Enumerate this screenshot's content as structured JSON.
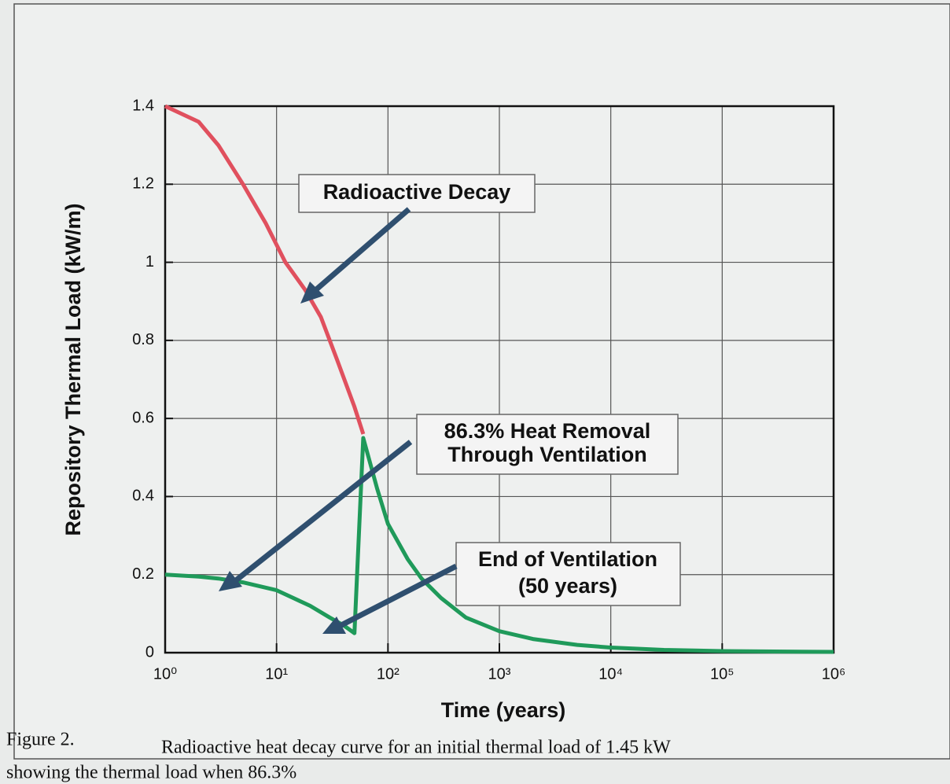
{
  "chart_data": {
    "type": "line",
    "xlabel": "Time (years)",
    "ylabel": "Repository Thermal Load (kW/m)",
    "xscale": "log",
    "grid": true,
    "xlim": [
      1,
      1000000
    ],
    "ylim": [
      0,
      1.4
    ],
    "xticks": [
      {
        "value": 1,
        "label": "10⁰"
      },
      {
        "value": 10,
        "label": "10¹"
      },
      {
        "value": 100,
        "label": "10²"
      },
      {
        "value": 1000,
        "label": "10³"
      },
      {
        "value": 10000,
        "label": "10⁴"
      },
      {
        "value": 100000,
        "label": "10⁵"
      },
      {
        "value": 1000000,
        "label": "10⁶"
      }
    ],
    "yticks": [
      0,
      0.2,
      0.4,
      0.6,
      0.8,
      1,
      1.2,
      1.4
    ],
    "series": [
      {
        "name": "Radioactive Decay",
        "color": "#e0505e",
        "x": [
          1,
          2,
          3,
          5,
          8,
          12,
          18,
          25,
          35,
          50,
          60
        ],
        "values": [
          1.4,
          1.36,
          1.3,
          1.2,
          1.1,
          1.0,
          0.93,
          0.86,
          0.75,
          0.63,
          0.56
        ]
      },
      {
        "name": "86.3% Heat Removal Through Ventilation",
        "color": "#1f9a5a",
        "x": [
          1,
          2,
          3,
          5,
          10,
          20,
          30,
          40,
          50,
          60,
          80,
          100,
          150,
          200,
          300,
          500,
          1000,
          2000,
          5000,
          10000,
          30000,
          100000,
          1000000
        ],
        "values": [
          0.2,
          0.195,
          0.19,
          0.18,
          0.16,
          0.12,
          0.09,
          0.07,
          0.05,
          0.55,
          0.42,
          0.33,
          0.24,
          0.19,
          0.14,
          0.09,
          0.055,
          0.035,
          0.02,
          0.013,
          0.007,
          0.004,
          0.002
        ]
      }
    ],
    "annotations": [
      "Radioactive Decay",
      "86.3% Heat Removal",
      "Through Ventilation",
      "End of Ventilation",
      "(50 years)"
    ],
    "caption": {
      "label": "Figure 2.",
      "lines": [
        "Radioactive heat decay curve for an initial thermal load of 1.45 kW",
        "showing the thermal load when 86.3%"
      ]
    }
  }
}
